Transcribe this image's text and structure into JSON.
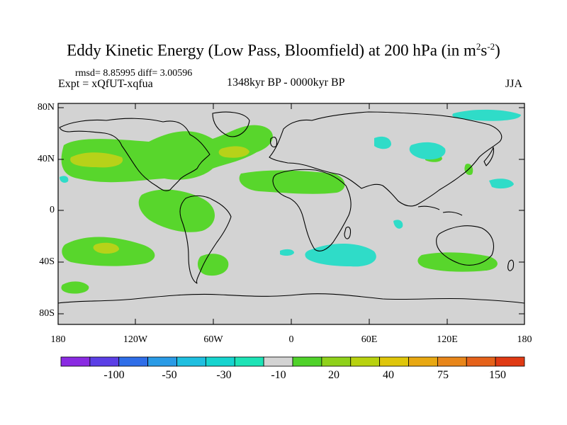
{
  "header": {
    "title_main": "Eddy Kinetic Energy (Low Pass, Bloomfield) at 200 hPa (in m",
    "title_sup1": "2",
    "title_mid": "s",
    "title_sup2": "-2",
    "title_end": ")",
    "stats": "rmsd= 8.85995 diff= 3.00596",
    "experiment": "Expt = xQfUT-xqfua",
    "period": "1348kyr BP - 0000kyr BP",
    "season": "JJA"
  },
  "axes": {
    "lat_labels": [
      "80N",
      "40N",
      "0",
      "40S",
      "80S"
    ],
    "lon_labels": [
      "180",
      "120W",
      "60W",
      "0",
      "60E",
      "120E",
      "180"
    ]
  },
  "colorbar": {
    "labels": [
      "-100",
      "-50",
      "-30",
      "-10",
      "20",
      "40",
      "75",
      "150"
    ],
    "colors": [
      "#8a2be2",
      "#5b3fe6",
      "#2f6ee8",
      "#2a9be6",
      "#1fbfe0",
      "#16d4cf",
      "#1de3b6",
      "#d3d3d3",
      "#4fd22a",
      "#8fd11a",
      "#b8d20f",
      "#dfc60a",
      "#e8a812",
      "#e8861a",
      "#e5621a",
      "#e03a14"
    ]
  },
  "map": {
    "background": "#d3d3d3",
    "colors": {
      "green": "#58d62c",
      "lime": "#a8d61c",
      "yellow": "#c8d116",
      "cyan": "#2fdcc8"
    }
  }
}
